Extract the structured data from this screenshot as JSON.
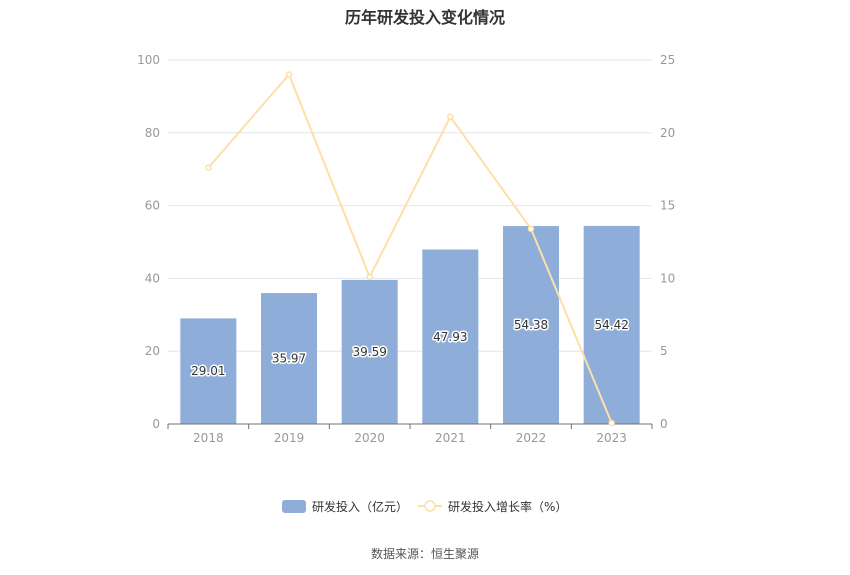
{
  "chart_data": {
    "type": "bar",
    "title": "历年研发投入变化情况",
    "categories": [
      "2018",
      "2019",
      "2020",
      "2021",
      "2022",
      "2023"
    ],
    "series": [
      {
        "name": "研发投入（亿元）",
        "type": "bar",
        "axis": "left",
        "values": [
          29.01,
          35.97,
          39.59,
          47.93,
          54.38,
          54.42
        ],
        "color": "#8eadd9"
      },
      {
        "name": "研发投入增长率（%）",
        "type": "line",
        "axis": "right",
        "values": [
          17.6,
          24.0,
          10.1,
          21.1,
          13.4,
          0.07
        ],
        "color": "#fce0a8"
      }
    ],
    "ylim": [
      0,
      100
    ],
    "y_ticks": [
      0,
      20,
      40,
      60,
      80,
      100
    ],
    "y2lim": [
      0,
      25
    ],
    "y2_ticks": [
      0,
      5,
      10,
      15,
      20,
      25
    ],
    "grid": true,
    "legend": "bottom"
  },
  "source": "数据来源：恒生聚源"
}
